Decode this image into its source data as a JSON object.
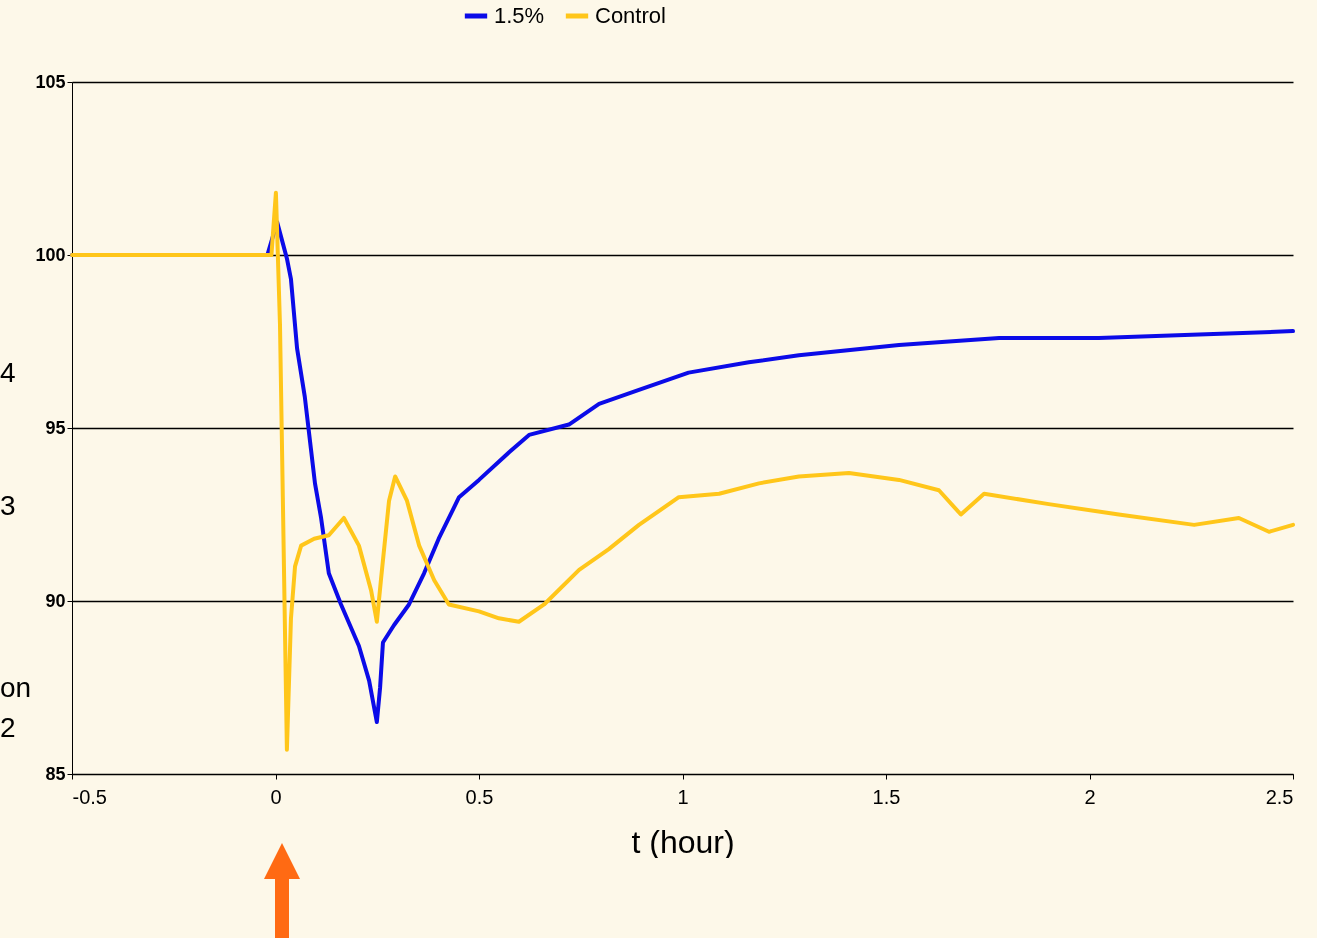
{
  "chart_data": {
    "type": "line",
    "xlabel": "t (hour)",
    "xlim": [
      -0.5,
      2.5
    ],
    "xticks": [
      -0.5,
      0,
      0.5,
      1,
      1.5,
      2,
      2.5
    ],
    "ylim": [
      85,
      105
    ],
    "yticks": [
      85,
      90,
      95,
      100,
      105
    ],
    "grid": "y",
    "legend": "top",
    "marker": "none",
    "line_style": "solid",
    "annotations": [
      "4",
      "3",
      "on",
      "2"
    ],
    "series": [
      {
        "name": "1.5%",
        "color": "#0b0be8",
        "x": [
          -0.5,
          -0.02,
          0.004,
          0.028,
          0.038,
          0.053,
          0.072,
          0.087,
          0.097,
          0.112,
          0.131,
          0.161,
          0.205,
          0.23,
          0.249,
          0.257,
          0.264,
          0.291,
          0.328,
          0.365,
          0.401,
          0.451,
          0.5,
          0.574,
          0.623,
          0.721,
          0.795,
          0.893,
          1.015,
          1.163,
          1.286,
          1.532,
          1.778,
          2.023,
          2.269,
          2.5
        ],
        "values": [
          100,
          100,
          100.95,
          99.9,
          99.3,
          97.3,
          95.9,
          94.4,
          93.4,
          92.4,
          90.8,
          89.9,
          88.7,
          87.7,
          86.5,
          87.5,
          88.8,
          89.3,
          89.9,
          90.8,
          91.8,
          93.0,
          93.5,
          94.3,
          94.8,
          95.1,
          95.7,
          96.1,
          96.6,
          96.9,
          97.1,
          97.4,
          97.6,
          97.6,
          97.7,
          97.8
        ]
      },
      {
        "name": "Control",
        "color": "#ffc61a",
        "x": [
          -0.5,
          -0.01,
          0.001,
          0.011,
          0.018,
          0.028,
          0.038,
          0.048,
          0.063,
          0.095,
          0.131,
          0.168,
          0.205,
          0.235,
          0.249,
          0.259,
          0.279,
          0.294,
          0.323,
          0.353,
          0.39,
          0.426,
          0.5,
          0.549,
          0.598,
          0.66,
          0.746,
          0.819,
          0.893,
          0.991,
          1.09,
          1.188,
          1.286,
          1.409,
          1.532,
          1.63,
          1.684,
          1.741,
          1.9,
          2.072,
          2.257,
          2.367,
          2.441,
          2.5
        ],
        "values": [
          100,
          100,
          101.8,
          98,
          93,
          85.7,
          89.5,
          91,
          91.6,
          91.8,
          91.9,
          92.4,
          91.6,
          90.3,
          89.4,
          90.6,
          92.9,
          93.6,
          92.9,
          91.6,
          90.6,
          89.9,
          89.7,
          89.5,
          89.4,
          89.9,
          90.9,
          91.5,
          92.2,
          93.0,
          93.1,
          93.4,
          93.6,
          93.7,
          93.5,
          93.2,
          92.5,
          93.1,
          92.8,
          92.5,
          92.2,
          92.4,
          92.0,
          92.2
        ]
      }
    ]
  }
}
